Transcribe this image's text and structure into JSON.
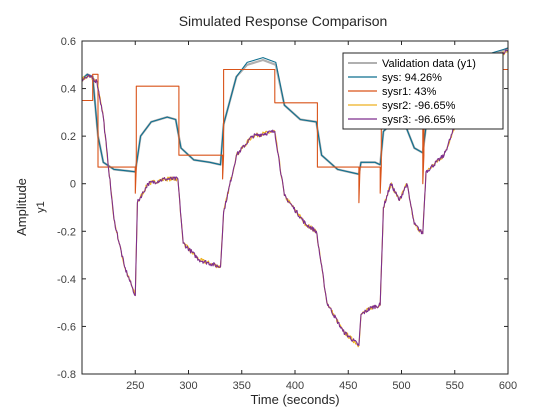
{
  "chart_data": {
    "type": "line",
    "title": "Simulated Response Comparison",
    "xlabel": "Time (seconds)",
    "ylabel": "Amplitude",
    "output_label": "y1",
    "xlim": [
      200,
      600
    ],
    "ylim": [
      -0.8,
      0.6
    ],
    "xticks": [
      250,
      300,
      350,
      400,
      450,
      500,
      550,
      600
    ],
    "yticks": [
      -0.8,
      -0.6,
      -0.4,
      -0.2,
      0,
      0.2,
      0.4,
      0.6
    ],
    "xtick_labels": [
      "250",
      "300",
      "350",
      "400",
      "450",
      "500",
      "550",
      "600"
    ],
    "ytick_labels": [
      "-0.8",
      "-0.6",
      "-0.4",
      "-0.2",
      "0",
      "0.2",
      "0.4",
      "0.6"
    ],
    "grid": false,
    "legend_position": "top-right",
    "series": [
      {
        "name": "Validation data (y1)",
        "color": "#b0b0b0",
        "points": [
          [
            200,
            0.44
          ],
          [
            205,
            0.46
          ],
          [
            210,
            0.45
          ],
          [
            215,
            0.2
          ],
          [
            220,
            0.09
          ],
          [
            230,
            0.06
          ],
          [
            250,
            0.05
          ],
          [
            255,
            0.2
          ],
          [
            265,
            0.26
          ],
          [
            280,
            0.28
          ],
          [
            288,
            0.27
          ],
          [
            293,
            0.15
          ],
          [
            305,
            0.1
          ],
          [
            320,
            0.09
          ],
          [
            330,
            0.08
          ],
          [
            333,
            0.25
          ],
          [
            345,
            0.45
          ],
          [
            355,
            0.5
          ],
          [
            370,
            0.52
          ],
          [
            382,
            0.5
          ],
          [
            390,
            0.33
          ],
          [
            405,
            0.27
          ],
          [
            420,
            0.26
          ],
          [
            425,
            0.12
          ],
          [
            440,
            0.06
          ],
          [
            460,
            0.04
          ],
          [
            462,
            0.09
          ],
          [
            475,
            0.09
          ],
          [
            480,
            0.08
          ],
          [
            483,
            0.22
          ],
          [
            495,
            0.27
          ],
          [
            505,
            0.23
          ],
          [
            512,
            0.15
          ],
          [
            520,
            0.13
          ],
          [
            523,
            0.24
          ],
          [
            540,
            0.24
          ],
          [
            555,
            0.34
          ],
          [
            570,
            0.48
          ],
          [
            585,
            0.54
          ],
          [
            600,
            0.57
          ]
        ]
      },
      {
        "name": "sys: 94.26%",
        "color": "#0e6f8f",
        "points": [
          [
            200,
            0.44
          ],
          [
            205,
            0.46
          ],
          [
            210,
            0.45
          ],
          [
            215,
            0.2
          ],
          [
            220,
            0.09
          ],
          [
            230,
            0.06
          ],
          [
            250,
            0.05
          ],
          [
            255,
            0.2
          ],
          [
            265,
            0.26
          ],
          [
            280,
            0.28
          ],
          [
            288,
            0.27
          ],
          [
            293,
            0.15
          ],
          [
            305,
            0.1
          ],
          [
            320,
            0.09
          ],
          [
            330,
            0.08
          ],
          [
            333,
            0.25
          ],
          [
            345,
            0.45
          ],
          [
            355,
            0.51
          ],
          [
            370,
            0.53
          ],
          [
            382,
            0.51
          ],
          [
            390,
            0.33
          ],
          [
            405,
            0.27
          ],
          [
            420,
            0.26
          ],
          [
            425,
            0.12
          ],
          [
            440,
            0.06
          ],
          [
            460,
            0.04
          ],
          [
            462,
            0.09
          ],
          [
            475,
            0.09
          ],
          [
            480,
            0.08
          ],
          [
            483,
            0.22
          ],
          [
            495,
            0.27
          ],
          [
            505,
            0.23
          ],
          [
            512,
            0.15
          ],
          [
            520,
            0.13
          ],
          [
            523,
            0.24
          ],
          [
            540,
            0.24
          ],
          [
            555,
            0.34
          ],
          [
            570,
            0.49
          ],
          [
            585,
            0.55
          ],
          [
            600,
            0.57
          ]
        ]
      },
      {
        "name": "sysr1:  43%",
        "color": "#d95319",
        "points": [
          [
            200,
            0.35
          ],
          [
            210,
            0.35
          ],
          [
            210,
            0.46
          ],
          [
            215,
            0.46
          ],
          [
            215,
            0.07
          ],
          [
            250,
            0.07
          ],
          [
            250,
            -0.04
          ],
          [
            251,
            0.07
          ],
          [
            251,
            0.41
          ],
          [
            291,
            0.41
          ],
          [
            291,
            0.12
          ],
          [
            332,
            0.12
          ],
          [
            332,
            0.02
          ],
          [
            333,
            0.12
          ],
          [
            333,
            0.48
          ],
          [
            381,
            0.48
          ],
          [
            381,
            0.34
          ],
          [
            421,
            0.34
          ],
          [
            421,
            0.07
          ],
          [
            460,
            0.07
          ],
          [
            460,
            -0.08
          ],
          [
            461,
            0.07
          ],
          [
            461,
            0.07
          ],
          [
            480,
            0.07
          ],
          [
            480,
            -0.04
          ],
          [
            481,
            0.07
          ],
          [
            481,
            0.28
          ],
          [
            520,
            0.28
          ],
          [
            520,
            0.0
          ],
          [
            521,
            0.12
          ],
          [
            521,
            0.48
          ],
          [
            600,
            0.48
          ]
        ]
      },
      {
        "name": "sysr2: -96.65%",
        "color": "#edb120",
        "points": [
          [
            200,
            0.44
          ],
          [
            207,
            0.45
          ],
          [
            214,
            0.43
          ],
          [
            220,
            0.28
          ],
          [
            230,
            -0.15
          ],
          [
            240,
            -0.35
          ],
          [
            250,
            -0.47
          ],
          [
            252,
            -0.08
          ],
          [
            262,
            0.0
          ],
          [
            278,
            0.02
          ],
          [
            290,
            0.02
          ],
          [
            295,
            -0.25
          ],
          [
            310,
            -0.32
          ],
          [
            330,
            -0.35
          ],
          [
            333,
            -0.12
          ],
          [
            345,
            0.12
          ],
          [
            360,
            0.2
          ],
          [
            381,
            0.22
          ],
          [
            390,
            -0.05
          ],
          [
            410,
            -0.17
          ],
          [
            420,
            -0.2
          ],
          [
            430,
            -0.5
          ],
          [
            445,
            -0.62
          ],
          [
            460,
            -0.68
          ],
          [
            462,
            -0.55
          ],
          [
            472,
            -0.52
          ],
          [
            480,
            -0.51
          ],
          [
            483,
            -0.1
          ],
          [
            490,
            0.0
          ],
          [
            498,
            -0.07
          ],
          [
            505,
            0.0
          ],
          [
            512,
            -0.17
          ],
          [
            520,
            -0.21
          ],
          [
            523,
            0.05
          ],
          [
            540,
            0.12
          ],
          [
            555,
            0.3
          ],
          [
            570,
            0.45
          ],
          [
            585,
            0.52
          ],
          [
            600,
            0.56
          ]
        ]
      },
      {
        "name": "sysr3: -96.65%",
        "color": "#7e2f8e",
        "points": [
          [
            200,
            0.44
          ],
          [
            207,
            0.45
          ],
          [
            214,
            0.43
          ],
          [
            220,
            0.28
          ],
          [
            230,
            -0.15
          ],
          [
            240,
            -0.35
          ],
          [
            250,
            -0.47
          ],
          [
            252,
            -0.08
          ],
          [
            262,
            0.0
          ],
          [
            278,
            0.02
          ],
          [
            290,
            0.02
          ],
          [
            295,
            -0.25
          ],
          [
            310,
            -0.32
          ],
          [
            330,
            -0.35
          ],
          [
            333,
            -0.12
          ],
          [
            345,
            0.12
          ],
          [
            360,
            0.2
          ],
          [
            381,
            0.22
          ],
          [
            390,
            -0.05
          ],
          [
            410,
            -0.17
          ],
          [
            420,
            -0.2
          ],
          [
            430,
            -0.5
          ],
          [
            445,
            -0.62
          ],
          [
            460,
            -0.68
          ],
          [
            462,
            -0.55
          ],
          [
            472,
            -0.52
          ],
          [
            480,
            -0.51
          ],
          [
            483,
            -0.1
          ],
          [
            490,
            0.0
          ],
          [
            498,
            -0.07
          ],
          [
            505,
            0.0
          ],
          [
            512,
            -0.17
          ],
          [
            520,
            -0.21
          ],
          [
            523,
            0.05
          ],
          [
            540,
            0.12
          ],
          [
            555,
            0.3
          ],
          [
            570,
            0.45
          ],
          [
            585,
            0.52
          ],
          [
            600,
            0.56
          ]
        ]
      }
    ]
  }
}
